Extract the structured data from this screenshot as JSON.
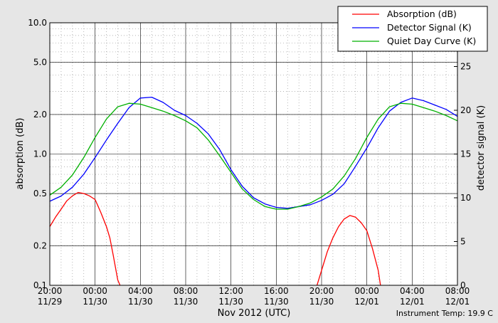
{
  "chart_data": {
    "type": "line",
    "title": "",
    "xlabel": "Nov 2012 (UTC)",
    "ylabel_left": "absorption (dB)",
    "ylabel_right": "detector signal (K)",
    "y_left_scale": "log",
    "y_left_lim": [
      0.1,
      10.0
    ],
    "y_left_ticks": [
      {
        "value": 0.1,
        "label": "0.1"
      },
      {
        "value": 0.2,
        "label": "0.2"
      },
      {
        "value": 0.5,
        "label": "0.5"
      },
      {
        "value": 1.0,
        "label": "1.0"
      },
      {
        "value": 2.0,
        "label": "2.0"
      },
      {
        "value": 5.0,
        "label": "5.0"
      },
      {
        "value": 10.0,
        "label": "10.0"
      }
    ],
    "y_right_scale": "linear",
    "y_right_lim": [
      0,
      30
    ],
    "y_right_ticks": [
      {
        "value": 0,
        "label": "0"
      },
      {
        "value": 5,
        "label": "5"
      },
      {
        "value": 10,
        "label": "10"
      },
      {
        "value": 15,
        "label": "15"
      },
      {
        "value": 20,
        "label": "20"
      },
      {
        "value": 25,
        "label": "25"
      }
    ],
    "x_range_hours": [
      -4,
      32
    ],
    "x_ticks": [
      {
        "hour": -4,
        "time": "20:00",
        "date": "11/29"
      },
      {
        "hour": 0,
        "time": "00:00",
        "date": "11/30"
      },
      {
        "hour": 4,
        "time": "04:00",
        "date": "11/30"
      },
      {
        "hour": 8,
        "time": "08:00",
        "date": "11/30"
      },
      {
        "hour": 12,
        "time": "12:00",
        "date": "11/30"
      },
      {
        "hour": 16,
        "time": "16:00",
        "date": "11/30"
      },
      {
        "hour": 20,
        "time": "20:00",
        "date": "11/30"
      },
      {
        "hour": 24,
        "time": "00:00",
        "date": "12/01"
      },
      {
        "hour": 28,
        "time": "04:00",
        "date": "12/01"
      },
      {
        "hour": 32,
        "time": "08:00",
        "date": "12/01"
      }
    ],
    "grid": true,
    "legend_position": "top-right",
    "series": [
      {
        "name": "Absorption (dB)",
        "axis": "left",
        "color": "#ff0000",
        "segments": [
          {
            "x": [
              -4.0,
              -3.5,
              -3.0,
              -2.5,
              -2.0,
              -1.5,
              -1.0,
              -0.5,
              0.0,
              0.5,
              1.0,
              1.3,
              1.6,
              2.0,
              2.2
            ],
            "y": [
              0.28,
              0.33,
              0.38,
              0.44,
              0.48,
              0.51,
              0.5,
              0.48,
              0.45,
              0.36,
              0.28,
              0.23,
              0.17,
              0.11,
              0.1
            ]
          },
          {
            "x": [
              19.6,
              20.0,
              20.5,
              21.0,
              21.5,
              22.0,
              22.5,
              23.0,
              23.5,
              24.0,
              24.5,
              25.0,
              25.2
            ],
            "y": [
              0.1,
              0.13,
              0.18,
              0.23,
              0.28,
              0.32,
              0.34,
              0.33,
              0.3,
              0.26,
              0.19,
              0.13,
              0.1
            ]
          }
        ]
      },
      {
        "name": "Detector Signal (K)",
        "axis": "right",
        "color": "#0000ff",
        "x": [
          -4,
          -3,
          -2,
          -1,
          0,
          1,
          2,
          3,
          4,
          5,
          6,
          7,
          8,
          9,
          10,
          11,
          12,
          13,
          14,
          15,
          16,
          17,
          18,
          19,
          20,
          21,
          22,
          23,
          24,
          25,
          26,
          27,
          28,
          29,
          30,
          31,
          32
        ],
        "y": [
          9.6,
          10.2,
          11.2,
          12.7,
          14.6,
          16.6,
          18.5,
          20.3,
          21.4,
          21.5,
          20.9,
          20.0,
          19.4,
          18.5,
          17.3,
          15.5,
          13.2,
          11.3,
          10.0,
          9.3,
          8.9,
          8.8,
          9.0,
          9.2,
          9.7,
          10.4,
          11.6,
          13.6,
          15.7,
          18.0,
          19.9,
          20.9,
          21.4,
          21.1,
          20.6,
          20.1,
          19.3
        ]
      },
      {
        "name": "Quiet Day Curve (K)",
        "axis": "right",
        "color": "#00b000",
        "x": [
          -4,
          -3,
          -2,
          -1,
          0,
          1,
          2,
          3,
          4,
          5,
          6,
          7,
          8,
          9,
          10,
          11,
          12,
          13,
          14,
          15,
          16,
          17,
          18,
          19,
          20,
          21,
          22,
          23,
          24,
          25,
          26,
          27,
          28,
          29,
          30,
          31,
          32
        ],
        "y": [
          10.3,
          11.2,
          12.6,
          14.6,
          16.9,
          19.0,
          20.4,
          20.8,
          20.7,
          20.3,
          19.9,
          19.4,
          18.8,
          18.0,
          16.6,
          14.8,
          12.9,
          11.0,
          9.8,
          9.0,
          8.7,
          8.7,
          9.0,
          9.4,
          10.1,
          11.0,
          12.5,
          14.5,
          16.9,
          19.0,
          20.4,
          20.8,
          20.7,
          20.3,
          19.9,
          19.4,
          18.8
        ]
      }
    ],
    "annotation": "Instrument Temp: 19.9 C"
  }
}
